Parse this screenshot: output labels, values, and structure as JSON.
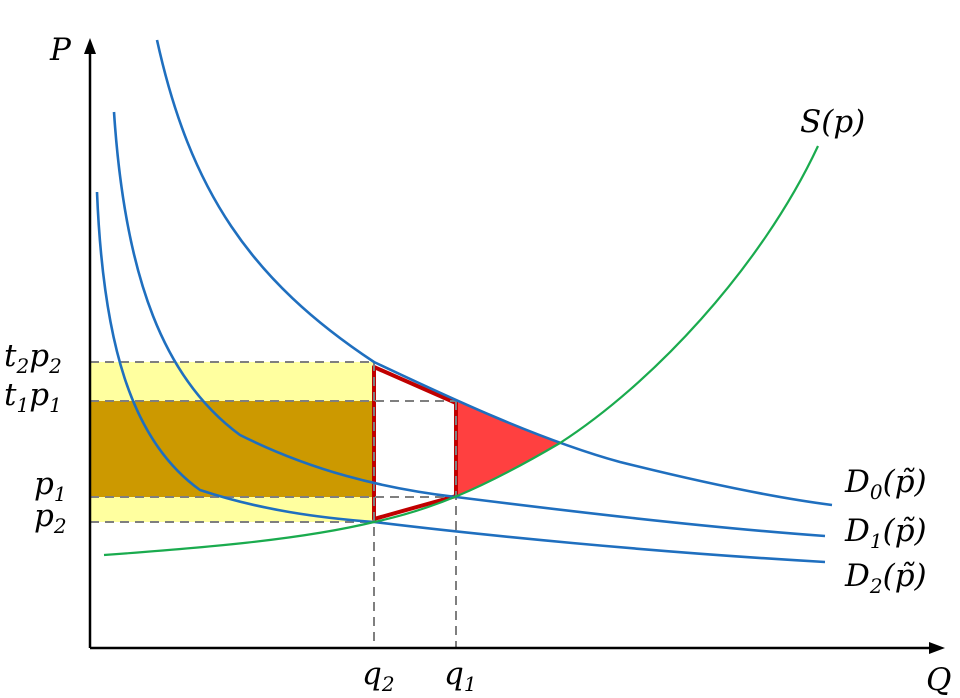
{
  "axes": {
    "y_label": "P",
    "x_label": "Q"
  },
  "price_labels": {
    "t2p2": {
      "main1": "t",
      "sub1": "2",
      "main2": "p",
      "sub2": "2"
    },
    "t1p1": {
      "main1": "t",
      "sub1": "1",
      "main2": "p",
      "sub2": "1"
    },
    "p1": {
      "main": "p",
      "sub": "1"
    },
    "p2": {
      "main": "p",
      "sub": "2"
    }
  },
  "quantity_labels": {
    "q2": {
      "main": "q",
      "sub": "2"
    },
    "q1": {
      "main": "q",
      "sub": "1"
    }
  },
  "curve_labels": {
    "supply": "S(p)",
    "d0": {
      "main": "D",
      "sub": "0",
      "arg": "(p̃)"
    },
    "d1": {
      "main": "D",
      "sub": "1",
      "arg": "(p̃)"
    },
    "d2": {
      "main": "D",
      "sub": "2",
      "arg": "(p̃)"
    }
  },
  "colors": {
    "light_yellow": "#ffff9f",
    "dark_gold": "#cc9900",
    "orange": "#ffc000",
    "red": "#ff4040",
    "outline_red": "#c00000",
    "demand_blue": "#1f6fbf",
    "supply_green": "#1aab4e",
    "dash_gray": "#7f7f7f"
  }
}
